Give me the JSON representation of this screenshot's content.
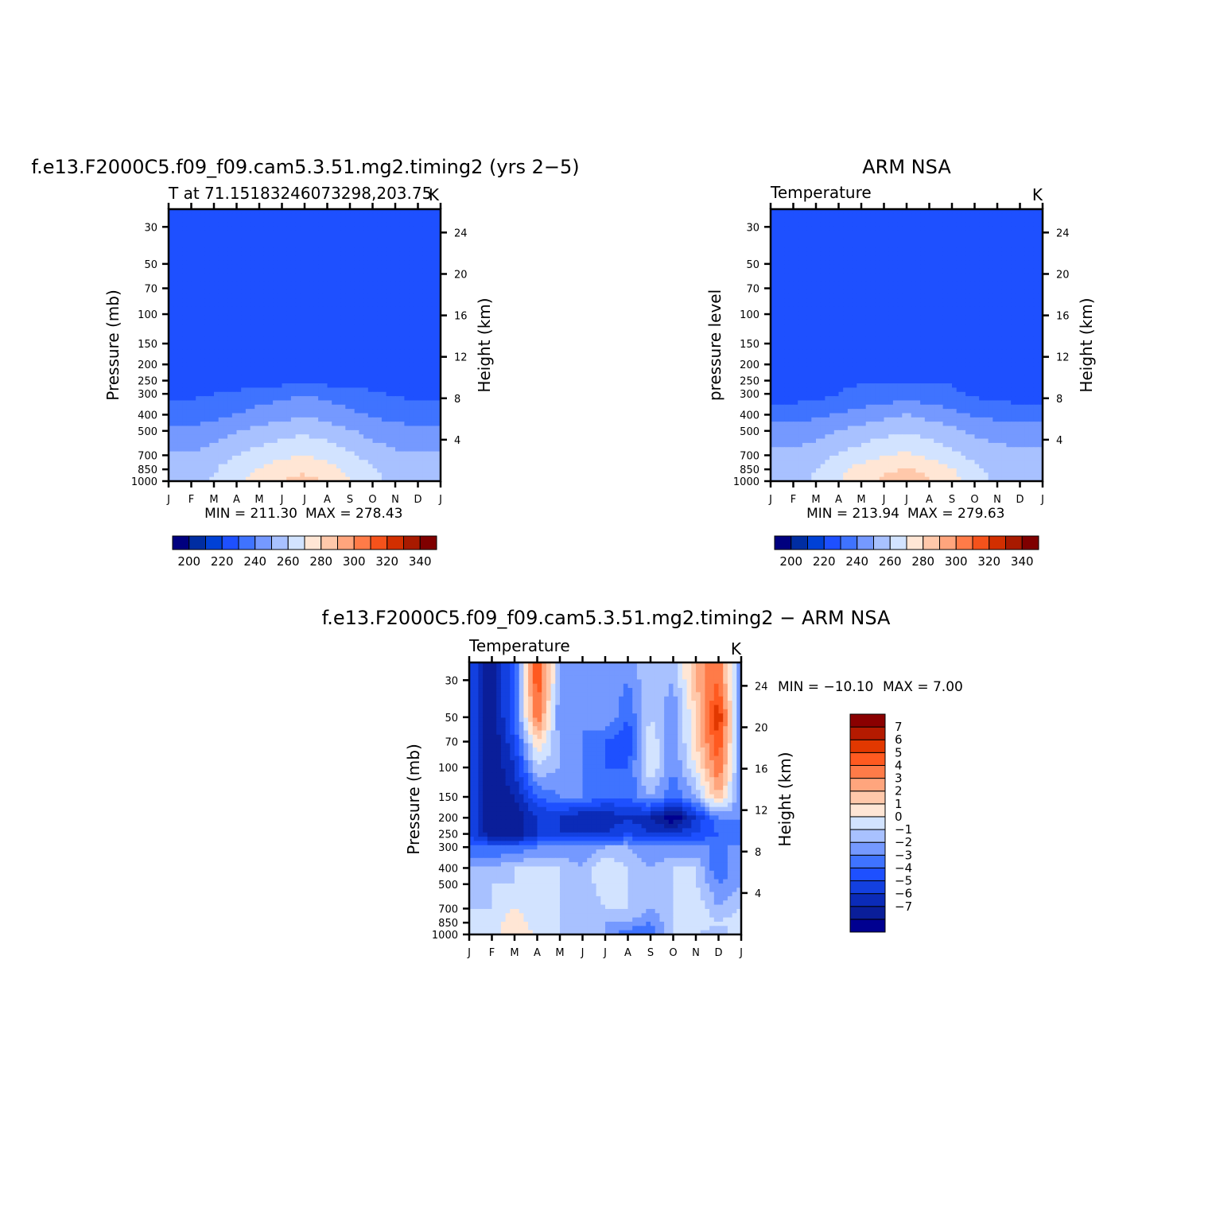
{
  "chart_data": [
    {
      "type": "heatmap",
      "title": "f.e13.F2000C5.f09_f09.cam5.3.51.mg2.timing2 (yrs 2−5)",
      "subtitle": "T at 71.15183246073298,203.75",
      "units": "K",
      "ylabel": "Pressure (mb)",
      "ylabel_right": "Height (km)",
      "x_ticks": [
        "J",
        "F",
        "M",
        "A",
        "M",
        "J",
        "J",
        "A",
        "S",
        "O",
        "N",
        "D",
        "J"
      ],
      "y_ticks": [
        "30",
        "50",
        "70",
        "100",
        "150",
        "200",
        "250",
        "300",
        "400",
        "500",
        "700",
        "850",
        "1000"
      ],
      "y_ticks_right": [
        "24",
        "20",
        "16",
        "12",
        "8",
        "4"
      ],
      "min_label": "MIN = 211.30",
      "max_label": "MAX = 278.43",
      "colorbar_labels": [
        "200",
        "220",
        "240",
        "260",
        "280",
        "300",
        "320",
        "340"
      ],
      "pressure_levels": [
        30,
        50,
        70,
        100,
        150,
        200,
        250,
        300,
        400,
        500,
        700,
        850,
        1000
      ],
      "grid": [
        [
          213,
          213,
          214,
          218,
          219,
          219,
          219,
          219,
          214,
          214,
          215,
          216,
          213
        ],
        [
          213,
          213,
          214,
          218,
          219,
          219,
          219,
          219,
          214,
          213,
          215,
          216,
          213
        ],
        [
          213,
          213,
          214,
          218,
          219,
          219,
          219,
          219,
          216,
          213,
          214,
          215,
          213
        ],
        [
          213,
          213,
          214,
          218,
          219,
          219,
          219,
          219,
          216,
          213,
          214,
          214,
          213
        ],
        [
          213,
          213,
          214,
          217,
          219,
          219,
          219,
          219,
          216,
          213,
          213,
          213,
          213
        ],
        [
          213,
          213,
          213,
          214,
          216,
          217,
          218,
          217,
          216,
          214,
          213,
          213,
          213
        ],
        [
          214,
          214,
          214,
          214,
          215,
          216,
          217,
          216,
          215,
          214,
          214,
          214,
          214
        ],
        [
          218,
          218,
          220,
          222,
          225,
          227,
          229,
          227,
          224,
          222,
          219,
          218,
          218
        ],
        [
          225,
          225,
          227,
          230,
          234,
          236,
          239,
          236,
          232,
          229,
          226,
          225,
          225
        ],
        [
          232,
          232,
          235,
          239,
          243,
          246,
          248,
          245,
          241,
          236,
          234,
          232,
          232
        ],
        [
          241,
          241,
          245,
          250,
          254,
          257,
          260,
          257,
          252,
          246,
          242,
          241,
          241
        ],
        [
          243,
          244,
          249,
          256,
          261,
          266,
          268,
          264,
          257,
          251,
          245,
          243,
          243
        ],
        [
          244,
          245,
          251,
          258,
          265,
          270,
          273,
          269,
          260,
          253,
          247,
          244,
          244
        ]
      ]
    },
    {
      "type": "heatmap",
      "title": "ARM NSA",
      "subtitle": "Temperature",
      "units": "K",
      "ylabel": "pressure level",
      "ylabel_right": "Height (km)",
      "x_ticks": [
        "J",
        "F",
        "M",
        "A",
        "M",
        "J",
        "J",
        "A",
        "S",
        "O",
        "N",
        "D",
        "J"
      ],
      "y_ticks": [
        "30",
        "50",
        "70",
        "100",
        "150",
        "200",
        "250",
        "300",
        "400",
        "500",
        "700",
        "850",
        "1000"
      ],
      "y_ticks_right": [
        "24",
        "20",
        "16",
        "12",
        "8",
        "4"
      ],
      "min_label": "MIN = 213.94",
      "max_label": "MAX = 279.63",
      "colorbar_labels": [
        "200",
        "220",
        "240",
        "260",
        "280",
        "300",
        "320",
        "340"
      ],
      "pressure_levels": [
        30,
        50,
        70,
        100,
        150,
        200,
        250,
        300,
        400,
        500,
        700,
        850,
        1000
      ],
      "grid": [
        [
          219,
          219,
          219,
          219,
          219,
          219,
          219,
          219,
          219,
          215,
          214,
          214,
          214
        ],
        [
          219,
          219,
          219,
          219,
          219,
          219,
          219,
          219,
          219,
          216,
          214,
          214,
          218
        ],
        [
          219,
          219,
          219,
          219,
          219,
          219,
          219,
          219,
          219,
          217,
          214,
          214,
          214
        ],
        [
          219,
          219,
          219,
          219,
          219,
          219,
          219,
          219,
          219,
          218,
          214,
          214,
          214
        ],
        [
          217,
          217,
          219,
          219,
          219,
          219,
          219,
          219,
          219,
          219,
          215,
          214,
          216
        ],
        [
          214,
          214,
          216,
          219,
          219,
          219,
          219,
          219,
          219,
          216,
          214,
          214,
          214
        ],
        [
          213,
          213,
          214,
          219,
          219,
          219,
          219,
          219,
          219,
          214,
          214,
          214,
          214
        ],
        [
          215,
          215,
          216,
          220,
          222,
          224,
          225,
          224,
          222,
          218,
          216,
          215,
          215
        ],
        [
          226,
          226,
          228,
          231,
          234,
          237,
          240,
          237,
          233,
          229,
          227,
          226,
          226
        ],
        [
          234,
          234,
          236,
          240,
          244,
          247,
          249,
          246,
          242,
          238,
          236,
          234,
          234
        ],
        [
          242,
          242,
          246,
          251,
          255,
          259,
          262,
          258,
          253,
          247,
          244,
          242,
          242
        ],
        [
          244,
          245,
          250,
          257,
          264,
          268,
          271,
          267,
          261,
          252,
          246,
          244,
          244
        ],
        [
          245,
          246,
          252,
          259,
          267,
          272,
          276,
          271,
          264,
          255,
          248,
          245,
          245
        ]
      ]
    },
    {
      "type": "heatmap",
      "title": "f.e13.F2000C5.f09_f09.cam5.3.51.mg2.timing2 − ARM NSA",
      "subtitle": "Temperature",
      "units": "K",
      "ylabel": "Pressure (mb)",
      "ylabel_right": "Height (km)",
      "x_ticks": [
        "J",
        "F",
        "M",
        "A",
        "M",
        "J",
        "J",
        "A",
        "S",
        "O",
        "N",
        "D",
        "J"
      ],
      "y_ticks": [
        "30",
        "50",
        "70",
        "100",
        "150",
        "200",
        "250",
        "300",
        "400",
        "500",
        "700",
        "850",
        "1000"
      ],
      "y_ticks_right": [
        "24",
        "20",
        "16",
        "12",
        "8",
        "4"
      ],
      "min_label": "MIN = −10.10",
      "max_label": "MAX =    7.00",
      "colorbar_labels": [
        "7",
        "6",
        "5",
        "4",
        "3",
        "2",
        "1",
        "0",
        "−1",
        "−2",
        "−3",
        "−4",
        "−5",
        "−6",
        "−7"
      ],
      "pressure_levels": [
        30,
        50,
        70,
        100,
        150,
        200,
        250,
        300,
        400,
        500,
        700,
        850,
        1000
      ],
      "grid": [
        [
          -5,
          -8,
          -4,
          5,
          -2,
          -3,
          -2,
          -3,
          -1,
          -2,
          2,
          4,
          -3
        ],
        [
          -5,
          -8,
          -4,
          4,
          -3,
          -3,
          -2,
          -4,
          -1,
          -3,
          1,
          6,
          -3
        ],
        [
          -5,
          -8,
          -5,
          1,
          -2,
          -3,
          -4,
          -5,
          0,
          -3,
          1,
          5,
          -3
        ],
        [
          -5,
          -8,
          -6,
          -1,
          -2,
          -3,
          -4,
          -4,
          0,
          -3,
          0,
          4,
          -3
        ],
        [
          -5,
          -8,
          -7,
          -4,
          -3,
          -3,
          -4,
          -4,
          -2,
          -4,
          -2,
          2,
          -3
        ],
        [
          -5,
          -8,
          -8,
          -6,
          -6,
          -7,
          -7,
          -6,
          -7,
          -9,
          -6,
          -3,
          -3
        ],
        [
          -5,
          -8,
          -8,
          -6,
          -6,
          -6,
          -6,
          -5,
          -6,
          -6,
          -5,
          -4,
          -4
        ],
        [
          -4,
          -4,
          -4,
          -3,
          -3,
          -3,
          -2,
          -2,
          -3,
          -3,
          -3,
          -3,
          -3
        ],
        [
          -2,
          -2,
          -1,
          -1,
          -1,
          -2,
          0,
          -1,
          -2,
          -1,
          -1,
          -4,
          -2
        ],
        [
          -2,
          -1,
          -1,
          -1,
          -1,
          -2,
          0,
          -1,
          -2,
          -1,
          -1,
          -3,
          -2
        ],
        [
          -1,
          -1,
          0,
          -1,
          -1,
          -2,
          -1,
          -1,
          -2,
          -1,
          0,
          -2,
          -1
        ],
        [
          -1,
          -1,
          1,
          -1,
          -1,
          -2,
          -2,
          -2,
          -3,
          -1,
          0,
          -1,
          0
        ],
        [
          -1,
          -1,
          1,
          0,
          -1,
          -1,
          -2,
          -4,
          -4,
          -1,
          -1,
          -2,
          0
        ]
      ]
    }
  ],
  "colors": {
    "abs_palette": [
      "#00007f",
      "#002da2",
      "#0041d6",
      "#1e50ff",
      "#3f73ff",
      "#7599ff",
      "#a8c1ff",
      "#d2e3ff",
      "#ffe6d5",
      "#ffc8aa",
      "#ffa57d",
      "#ff7b48",
      "#f5521b",
      "#d22f00",
      "#a81a00",
      "#7f0000"
    ],
    "diff_palette": [
      "#000090",
      "#0a1e99",
      "#0b2bb8",
      "#1340e0",
      "#1e50ff",
      "#3f73ff",
      "#7599ff",
      "#a8c1ff",
      "#d2e3ff",
      "#ffe6d5",
      "#ffc8aa",
      "#ffa57d",
      "#ff7b48",
      "#ff5a20",
      "#e23800",
      "#b41a00",
      "#8a0000"
    ]
  }
}
